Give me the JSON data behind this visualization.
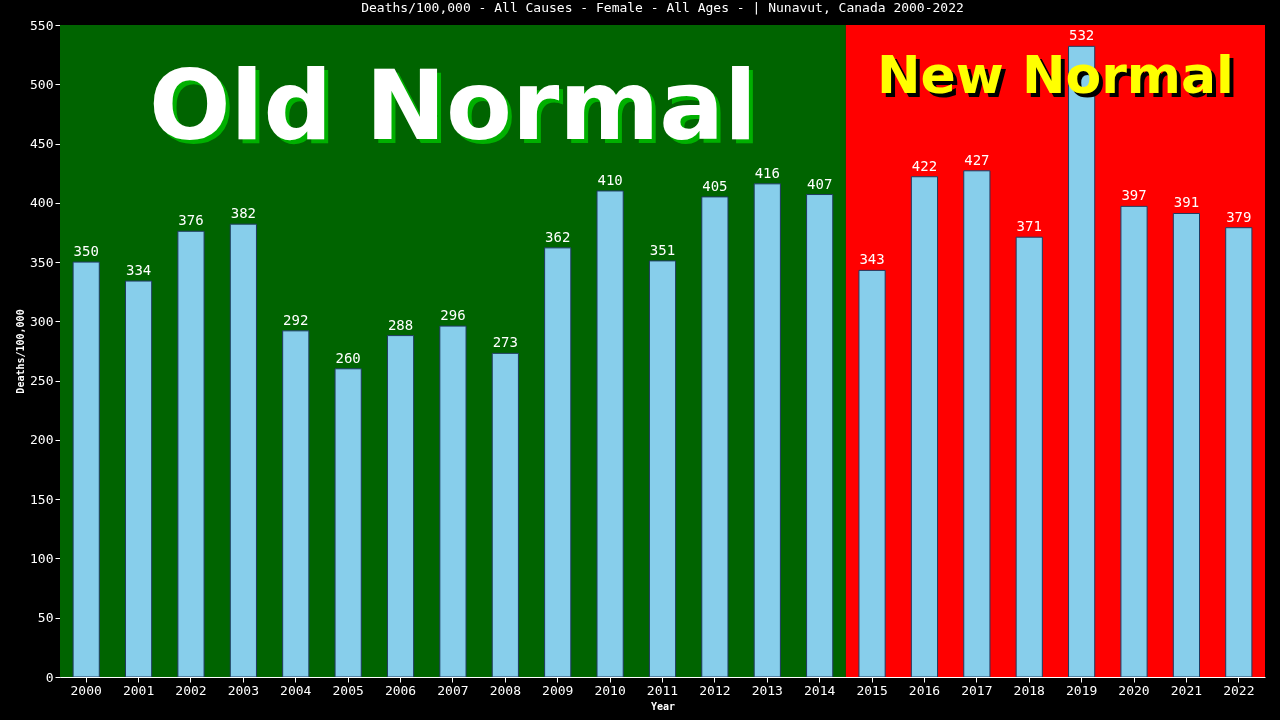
{
  "chart_data": {
    "type": "bar",
    "title": "Deaths/100,000 - All Causes - Female - All Ages -  | Nunavut, Canada 2000-2022",
    "xlabel": "Year",
    "ylabel": "Deaths/100,000",
    "categories": [
      "2000",
      "2001",
      "2002",
      "2003",
      "2004",
      "2005",
      "2006",
      "2007",
      "2008",
      "2009",
      "2010",
      "2011",
      "2012",
      "2013",
      "2014",
      "2015",
      "2016",
      "2017",
      "2018",
      "2019",
      "2020",
      "2021",
      "2022"
    ],
    "values": [
      350,
      334,
      376,
      382,
      292,
      260,
      288,
      296,
      273,
      362,
      410,
      351,
      405,
      416,
      407,
      343,
      422,
      427,
      371,
      532,
      397,
      391,
      379
    ],
    "color": "#87ceeb",
    "ylim": [
      0,
      550
    ],
    "yticks": [
      0,
      50,
      100,
      150,
      200,
      250,
      300,
      350,
      400,
      450,
      500,
      550
    ],
    "grid": false,
    "data_labels": true,
    "bands": [
      {
        "axis": "x",
        "from": "2000",
        "to": "2014",
        "label": "Old Normal",
        "color": "#006400"
      },
      {
        "axis": "x",
        "from": "2015",
        "to": "2022",
        "label": "New Normal",
        "color": "#ff0000"
      }
    ]
  }
}
